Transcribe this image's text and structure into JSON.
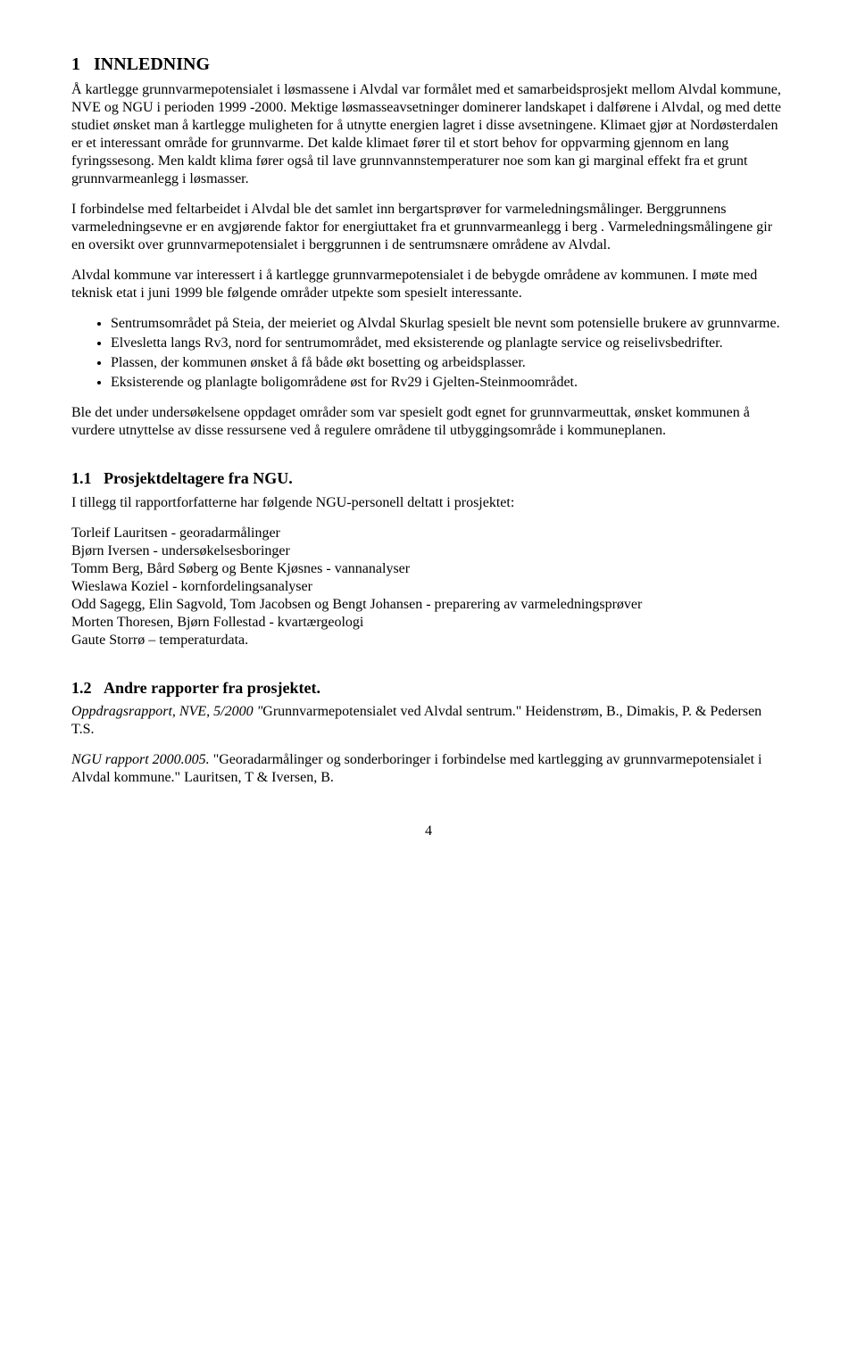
{
  "section1": {
    "number": "1",
    "title": "INNLEDNING",
    "p1": "Å kartlegge grunnvarmepotensialet i løsmassene i Alvdal var formålet med et samarbeidsprosjekt mellom Alvdal kommune, NVE og NGU i perioden 1999 -2000. Mektige løsmasseavsetninger dominerer landskapet i dalførene i Alvdal, og med dette studiet ønsket man å kartlegge muligheten for å utnytte energien lagret i disse avsetningene. Klimaet gjør at Nordøsterdalen er et interessant område for grunnvarme. Det kalde klimaet fører til et stort behov for oppvarming  gjennom en lang fyringssesong. Men kaldt klima fører også til lave grunnvannstemperaturer noe som kan gi marginal effekt fra et grunt grunnvarmeanlegg i løsmasser.",
    "p2": "I forbindelse med feltarbeidet i Alvdal ble det samlet inn bergartsprøver for varmeledningsmålinger. Berggrunnens varmeledningsevne er en avgjørende faktor for energiuttaket fra et grunnvarmeanlegg i berg . Varmeledningsmålingene gir en oversikt over grunnvarmepotensialet i berggrunnen i de sentrumsnære områdene av Alvdal.",
    "p3": "Alvdal kommune var interessert i å kartlegge grunnvarmepotensialet i de bebygde områdene av kommunen. I møte med teknisk etat i juni 1999 ble følgende områder utpekte som spesielt interessante.",
    "bullets": [
      "Sentrumsområdet på Steia, der meieriet og Alvdal Skurlag spesielt ble nevnt som potensielle brukere av  grunnvarme.",
      "Elvesletta langs Rv3, nord for sentrumområdet, med eksisterende og planlagte service og reiselivsbedrifter.",
      "Plassen, der kommunen ønsket å få både økt bosetting  og arbeidsplasser.",
      "Eksisterende og planlagte boligområdene øst for Rv29 i Gjelten-Steinmoområdet."
    ],
    "p4": "Ble det under undersøkelsene oppdaget områder som var spesielt godt egnet for grunnvarmeuttak, ønsket kommunen å vurdere utnyttelse av disse ressursene ved å regulere områdene til utbyggingsområde i kommuneplanen."
  },
  "section11": {
    "number": "1.1",
    "title": "Prosjektdeltagere fra NGU.",
    "intro": "I tillegg til rapportforfatterne har følgende NGU-personell deltatt i prosjektet:",
    "people": [
      "Torleif Lauritsen - georadarmålinger",
      "Bjørn Iversen - undersøkelsesboringer",
      "Tomm Berg, Bård Søberg og Bente Kjøsnes - vannanalyser",
      "Wieslawa Koziel - kornfordelingsanalyser",
      "Odd Sagegg, Elin Sagvold, Tom Jacobsen og Bengt Johansen - preparering av varmeledningsprøver",
      "Morten Thoresen, Bjørn Follestad - kvartærgeologi",
      "Gaute Storrø – temperaturdata."
    ]
  },
  "section12": {
    "number": "1.2",
    "title": "Andre rapporter fra prosjektet.",
    "ref1_italic": "Oppdragsrapport, NVE, 5/2000  \"",
    "ref1_rest": "Grunnvarmepotensialet ved Alvdal sentrum.\" Heidenstrøm, B., Dimakis, P. & Pedersen T.S.",
    "ref2_italic": "NGU rapport 2000.005.",
    "ref2_rest": "  \"Georadarmålinger og sonderboringer i forbindelse med kartlegging av grunnvarmepotensialet i Alvdal kommune.\" Lauritsen, T & Iversen, B."
  },
  "pageNumber": "4"
}
